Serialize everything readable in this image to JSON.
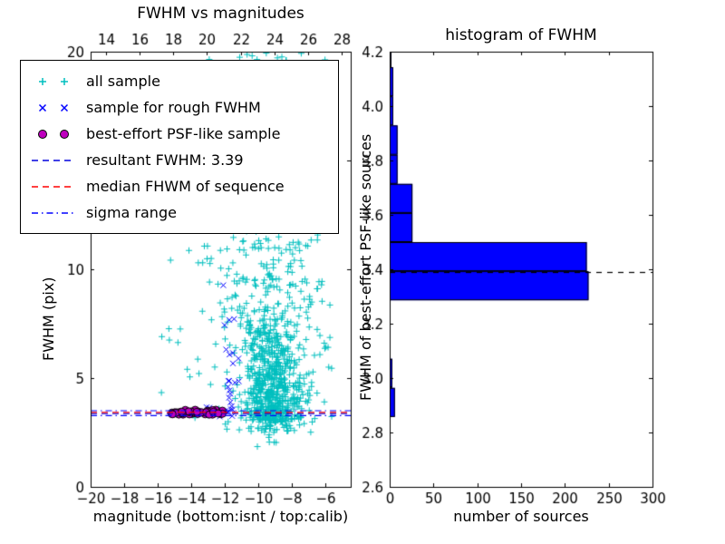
{
  "figure": {
    "background": "#ffffff"
  },
  "chart_data": [
    {
      "type": "scatter",
      "title": "FWHM vs magnitudes",
      "xlabel": "magnitude (bottom:isnt / top:calib)",
      "ylabel": "FWHM (pix)",
      "xlim": [
        -20,
        -4.5
      ],
      "ylim": [
        0,
        20
      ],
      "top_xlim": [
        13.08,
        28.54
      ],
      "x_ticks": [
        {
          "v": -20,
          "label": "−20"
        },
        {
          "v": -18,
          "label": "−18"
        },
        {
          "v": -16,
          "label": "−16"
        },
        {
          "v": -14,
          "label": "−14"
        },
        {
          "v": -12,
          "label": "−12"
        },
        {
          "v": -10,
          "label": "−10"
        },
        {
          "v": -8,
          "label": "−8"
        },
        {
          "v": -6,
          "label": "−6"
        }
      ],
      "top_ticks": [
        {
          "v": 14,
          "label": "14"
        },
        {
          "v": 16,
          "label": "16"
        },
        {
          "v": 18,
          "label": "18"
        },
        {
          "v": 20,
          "label": "20"
        },
        {
          "v": 22,
          "label": "22"
        },
        {
          "v": 24,
          "label": "24"
        },
        {
          "v": 26,
          "label": "26"
        },
        {
          "v": 28,
          "label": "28"
        }
      ],
      "y_ticks": [
        {
          "v": 0,
          "label": "0"
        },
        {
          "v": 5,
          "label": "5"
        },
        {
          "v": 10,
          "label": "10"
        },
        {
          "v": 15,
          "label": "15"
        },
        {
          "v": 20,
          "label": "20"
        }
      ],
      "series": [
        {
          "name": "all sample",
          "marker": "plus",
          "color": "#00bfbf",
          "clusters": [
            {
              "n": 560,
              "x": {
                "type": "normal",
                "mu": -9.2,
                "sd": 0.85
              },
              "y": {
                "type": "halfnormal",
                "base": 3.05,
                "sd": 2.6
              },
              "ylim": [
                2.2,
                20
              ]
            },
            {
              "n": 230,
              "x": {
                "type": "normal",
                "mu": -9.8,
                "sd": 1.5
              },
              "y": {
                "type": "normal",
                "mu": 7.5,
                "sd": 3.3
              },
              "ylim": [
                2.5,
                20
              ]
            },
            {
              "n": 110,
              "x": {
                "type": "normal",
                "mu": -10.2,
                "sd": 2.0
              },
              "y": {
                "type": "uniform",
                "lo": 9,
                "hi": 20
              }
            },
            {
              "n": 45,
              "x": {
                "type": "uniform",
                "lo": -15.8,
                "hi": -12.2
              },
              "y": {
                "type": "uniform",
                "lo": 2.8,
                "hi": 19.5
              }
            },
            {
              "n": 30,
              "x": {
                "type": "uniform",
                "lo": -7.6,
                "hi": -5.6
              },
              "y": {
                "type": "uniform",
                "lo": 3.0,
                "hi": 9.5
              }
            },
            {
              "n": 35,
              "x": {
                "type": "uniform",
                "lo": -13.2,
                "hi": -6.5
              },
              "y": {
                "type": "uniform",
                "lo": 17.5,
                "hi": 20
              }
            },
            {
              "n": 70,
              "x": {
                "type": "normal",
                "mu": -8.9,
                "sd": 0.9
              },
              "y": {
                "type": "uniform",
                "lo": 2.5,
                "hi": 3.4
              }
            },
            {
              "n": 6,
              "x": {
                "type": "normal",
                "mu": -9.6,
                "sd": 0.3
              },
              "y": {
                "type": "uniform",
                "lo": 1.8,
                "hi": 2.4
              }
            }
          ]
        },
        {
          "name": "sample for rough FWHM",
          "marker": "x",
          "color": "#0000ff",
          "clusters": [
            {
              "n": 20,
              "x": {
                "type": "normal",
                "mu": -11.65,
                "sd": 0.22
              },
              "y": {
                "type": "halfnormal",
                "base": 3.4,
                "sd": 3.4
              },
              "ylim": [
                3.3,
                12.3
              ]
            },
            {
              "n": 14,
              "x": {
                "type": "uniform",
                "lo": -13.6,
                "hi": -11.2
              },
              "y": {
                "type": "normal",
                "mu": 3.45,
                "sd": 0.09
              }
            }
          ]
        },
        {
          "name": "best-effort PSF-like sample",
          "marker": "circle",
          "color": "#bf00bf",
          "edge": "#000000",
          "clusters": [
            {
              "n": 50,
              "x": {
                "type": "uniform",
                "lo": -15.3,
                "hi": -12.1
              },
              "y": {
                "type": "normal",
                "mu": 3.41,
                "sd": 0.06
              }
            }
          ]
        }
      ],
      "hlines": [
        {
          "name": "resultant-fwhm-line",
          "y": 3.39,
          "color": "#0000dd",
          "style": "dashed"
        },
        {
          "name": "median-fwhm-line",
          "y": 3.44,
          "color": "#ff0000",
          "style": "dashed"
        },
        {
          "name": "sigma-range-low-line",
          "y": 3.3,
          "color": "#0000ff",
          "style": "dashdot"
        },
        {
          "name": "sigma-range-high-line",
          "y": 3.52,
          "color": "#0000ff",
          "style": "dashdot"
        }
      ],
      "legend": {
        "items": [
          {
            "label": "all sample",
            "type": "marker",
            "marker": "plus",
            "color": "#00bfbf"
          },
          {
            "label": "sample for rough FWHM",
            "type": "marker",
            "marker": "x",
            "color": "#0000ff"
          },
          {
            "label": "best-effort PSF-like sample",
            "type": "marker",
            "marker": "circle",
            "color": "#bf00bf",
            "edge": "#000000"
          },
          {
            "label": "resultant FWHM: 3.39",
            "type": "line",
            "style": "dashed",
            "color": "#0000dd"
          },
          {
            "label": "median FHWM of sequence",
            "type": "line",
            "style": "dashed",
            "color": "#ff0000"
          },
          {
            "label": "sigma range",
            "type": "line",
            "style": "dashdot",
            "color": "#0000ff"
          }
        ]
      }
    },
    {
      "type": "bar",
      "orientation": "horizontal",
      "title": "histogram of FWHM",
      "xlabel": "number of sources",
      "ylabel": "FWHM of best-effort PSF-like sources",
      "xlim": [
        0,
        300
      ],
      "ylim": [
        2.6,
        4.2
      ],
      "x_ticks": [
        {
          "v": 0,
          "label": "0"
        },
        {
          "v": 50,
          "label": "50"
        },
        {
          "v": 100,
          "label": "100"
        },
        {
          "v": 150,
          "label": "150"
        },
        {
          "v": 200,
          "label": "200"
        },
        {
          "v": 250,
          "label": "250"
        },
        {
          "v": 300,
          "label": "300"
        }
      ],
      "y_ticks": [
        {
          "v": 2.6,
          "label": "2.6"
        },
        {
          "v": 2.8,
          "label": "2.8"
        },
        {
          "v": 3.0,
          "label": "3.0"
        },
        {
          "v": 3.2,
          "label": "3.2"
        },
        {
          "v": 3.4,
          "label": "3.4"
        },
        {
          "v": 3.6,
          "label": "3.6"
        },
        {
          "v": 3.8,
          "label": "3.8"
        },
        {
          "v": 4.0,
          "label": "4.0"
        },
        {
          "v": 4.2,
          "label": "4.2"
        }
      ],
      "bar_color": "#0000ff",
      "bars": [
        {
          "lo": 2.857,
          "hi": 2.964,
          "count": 6
        },
        {
          "lo": 2.964,
          "hi": 3.071,
          "count": 3
        },
        {
          "lo": 3.286,
          "hi": 3.393,
          "count": 227
        },
        {
          "lo": 3.393,
          "hi": 3.5,
          "count": 225
        },
        {
          "lo": 3.5,
          "hi": 3.607,
          "count": 26
        },
        {
          "lo": 3.607,
          "hi": 3.714,
          "count": 26
        },
        {
          "lo": 3.714,
          "hi": 3.821,
          "count": 9
        },
        {
          "lo": 3.821,
          "hi": 3.929,
          "count": 9
        },
        {
          "lo": 3.929,
          "hi": 4.036,
          "count": 4
        },
        {
          "lo": 4.036,
          "hi": 4.143,
          "count": 4
        },
        {
          "lo": 4.143,
          "hi": 4.2,
          "count": 2
        }
      ],
      "mean_line": {
        "y": 3.39,
        "color": "#000000",
        "style": "dashed"
      }
    }
  ]
}
